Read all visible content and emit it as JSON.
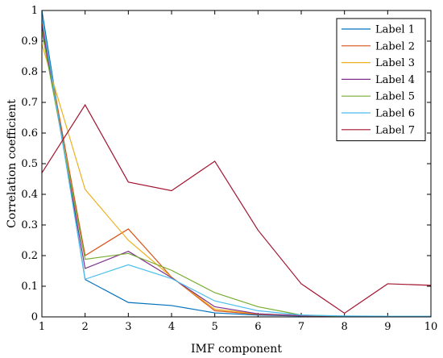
{
  "chart_data": {
    "type": "line",
    "xlabel": "IMF component",
    "ylabel": "Correlation coefficient",
    "xlim": [
      1,
      10
    ],
    "ylim": [
      0,
      1
    ],
    "x_ticks": [
      1,
      2,
      3,
      4,
      5,
      6,
      7,
      8,
      9,
      10
    ],
    "y_ticks": [
      0,
      0.1,
      0.2,
      0.3,
      0.4,
      0.5,
      0.6,
      0.7,
      0.8,
      0.9,
      1
    ],
    "y_tick_labels": [
      "0",
      "0.1",
      "0.2",
      "0.3",
      "0.4",
      "0.5",
      "0.6",
      "0.7",
      "0.8",
      "0.9",
      "1"
    ],
    "grid": false,
    "legend_position": "top-right",
    "x": [
      1,
      2,
      3,
      4,
      5,
      6,
      7,
      8,
      9,
      10
    ],
    "series": [
      {
        "name": "Label 1",
        "color": "#0072BD",
        "values": [
          1.0,
          0.122,
          0.047,
          0.037,
          0.013,
          0.006,
          0.003,
          0.002,
          0.001,
          0.001
        ]
      },
      {
        "name": "Label 2",
        "color": "#D95319",
        "values": [
          0.96,
          0.2,
          0.287,
          0.13,
          0.02,
          0.008,
          0.004,
          0.002,
          0.001,
          0.001
        ]
      },
      {
        "name": "Label 3",
        "color": "#EDB120",
        "values": [
          0.89,
          0.416,
          0.25,
          0.13,
          0.025,
          0.01,
          0.004,
          0.002,
          0.001,
          0.001
        ]
      },
      {
        "name": "Label 4",
        "color": "#7E2F8E",
        "values": [
          0.95,
          0.158,
          0.214,
          0.128,
          0.033,
          0.01,
          0.004,
          0.002,
          0.001,
          0.001
        ]
      },
      {
        "name": "Label 5",
        "color": "#77AC30",
        "values": [
          0.93,
          0.188,
          0.207,
          0.152,
          0.079,
          0.033,
          0.006,
          0.002,
          0.001,
          0.001
        ]
      },
      {
        "name": "Label 6",
        "color": "#4DBEEE",
        "values": [
          0.98,
          0.123,
          0.17,
          0.125,
          0.052,
          0.02,
          0.006,
          0.003,
          0.002,
          0.002
        ]
      },
      {
        "name": "Label 7",
        "color": "#A2142F",
        "values": [
          0.47,
          0.692,
          0.44,
          0.412,
          0.508,
          0.283,
          0.108,
          0.012,
          0.108,
          0.103
        ]
      }
    ]
  }
}
